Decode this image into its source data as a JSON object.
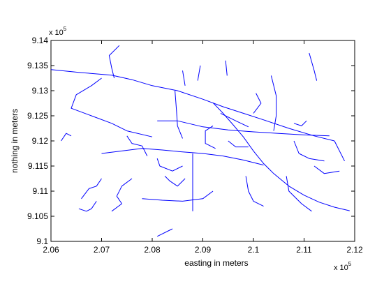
{
  "chart_data": {
    "type": "line",
    "xlabel": "easting in meters",
    "ylabel": "nothing in meters",
    "x_multiplier_label": {
      "base": "x 10",
      "exp": "5"
    },
    "y_multiplier_label": {
      "base": "x 10",
      "exp": "5"
    },
    "xlim": [
      2.06,
      2.12
    ],
    "ylim": [
      9.1,
      9.14
    ],
    "xticks": [
      2.06,
      2.07,
      2.08,
      2.09,
      2.1,
      2.11,
      2.12
    ],
    "yticks": [
      9.1,
      9.105,
      9.11,
      9.115,
      9.12,
      9.125,
      9.13,
      9.135,
      9.14
    ],
    "xtick_labels": [
      "2.06",
      "2.07",
      "2.08",
      "2.09",
      "2.1",
      "2.11",
      "2.12"
    ],
    "ytick_labels": [
      "9.1",
      "9.105",
      "9.11",
      "9.115",
      "9.12",
      "9.125",
      "9.13",
      "9.135",
      "9.14"
    ],
    "grid": false,
    "line_color": "#0000ff",
    "axes_color": "#000000",
    "series": [
      {
        "values": [
          [
            2.06,
            9.1342
          ],
          [
            2.066,
            9.1336
          ],
          [
            2.072,
            9.1331
          ],
          [
            2.076,
            9.1322
          ],
          [
            2.08,
            9.131
          ],
          [
            2.085,
            9.13
          ],
          [
            2.09,
            9.1283
          ],
          [
            2.094,
            9.1268
          ],
          [
            2.098,
            9.1255
          ],
          [
            2.102,
            9.1242
          ],
          [
            2.107,
            9.1225
          ],
          [
            2.112,
            9.121
          ],
          [
            2.116,
            9.12
          ]
        ]
      },
      {
        "values": [
          [
            2.092,
            9.1276
          ],
          [
            2.094,
            9.1255
          ],
          [
            2.096,
            9.1232
          ],
          [
            2.098,
            9.1208
          ],
          [
            2.1,
            9.118
          ],
          [
            2.102,
            9.1155
          ],
          [
            2.104,
            9.1135
          ],
          [
            2.107,
            9.111
          ],
          [
            2.11,
            9.1092
          ],
          [
            2.113,
            9.1078
          ],
          [
            2.116,
            9.1068
          ],
          [
            2.119,
            9.1061
          ]
        ]
      },
      {
        "values": [
          [
            2.07,
            9.1325
          ],
          [
            2.068,
            9.131
          ],
          [
            2.065,
            9.1292
          ],
          [
            2.064,
            9.1265
          ],
          [
            2.068,
            9.125
          ],
          [
            2.072,
            9.1235
          ],
          [
            2.075,
            9.122
          ],
          [
            2.08,
            9.1208
          ]
        ]
      },
      {
        "values": [
          [
            2.0725,
            9.1325
          ],
          [
            2.072,
            9.1345
          ],
          [
            2.0715,
            9.137
          ],
          [
            2.0735,
            9.139
          ]
        ]
      },
      {
        "values": [
          [
            2.081,
            9.124
          ],
          [
            2.085,
            9.124
          ],
          [
            2.09,
            9.1228
          ],
          [
            2.095,
            9.1222
          ],
          [
            2.1,
            9.1218
          ],
          [
            2.105,
            9.1215
          ],
          [
            2.11,
            9.1212
          ],
          [
            2.115,
            9.121
          ]
        ]
      },
      {
        "values": [
          [
            2.0845,
            9.13
          ],
          [
            2.0848,
            9.126
          ],
          [
            2.085,
            9.123
          ],
          [
            2.086,
            9.1205
          ]
        ]
      },
      {
        "values": [
          [
            2.07,
            9.1175
          ],
          [
            2.074,
            9.118
          ],
          [
            2.078,
            9.1185
          ],
          [
            2.082,
            9.1182
          ],
          [
            2.086,
            9.1178
          ],
          [
            2.09,
            9.1175
          ],
          [
            2.094,
            9.117
          ],
          [
            2.098,
            9.1162
          ],
          [
            2.102,
            9.1152
          ]
        ]
      },
      {
        "values": [
          [
            2.076,
            9.1125
          ],
          [
            2.074,
            9.111
          ],
          [
            2.073,
            9.109
          ],
          [
            2.074,
            9.1075
          ],
          [
            2.072,
            9.106
          ]
        ]
      },
      {
        "values": [
          [
            2.078,
            9.1085
          ],
          [
            2.082,
            9.1082
          ],
          [
            2.086,
            9.108
          ],
          [
            2.09,
            9.1085
          ],
          [
            2.092,
            9.11
          ]
        ]
      },
      {
        "values": [
          [
            2.088,
            9.1175
          ],
          [
            2.088,
            9.114
          ],
          [
            2.088,
            9.11
          ],
          [
            2.088,
            9.106
          ]
        ]
      },
      {
        "values": [
          [
            2.086,
            9.134
          ],
          [
            2.0865,
            9.131
          ]
        ]
      },
      {
        "values": [
          [
            2.0895,
            9.135
          ],
          [
            2.089,
            9.132
          ]
        ]
      },
      {
        "values": [
          [
            2.0945,
            9.136
          ],
          [
            2.0948,
            9.133
          ]
        ]
      },
      {
        "values": [
          [
            2.1035,
            9.133
          ],
          [
            2.1045,
            9.129
          ],
          [
            2.1045,
            9.125
          ],
          [
            2.104,
            9.122
          ]
        ]
      },
      {
        "values": [
          [
            2.111,
            9.1375
          ],
          [
            2.112,
            9.134
          ],
          [
            2.1125,
            9.132
          ]
        ]
      },
      {
        "values": [
          [
            2.116,
            9.12
          ],
          [
            2.118,
            9.116
          ]
        ]
      },
      {
        "values": [
          [
            2.092,
            9.123
          ],
          [
            2.0905,
            9.122
          ],
          [
            2.0905,
            9.1195
          ],
          [
            2.0925,
            9.1185
          ]
        ]
      },
      {
        "values": [
          [
            2.0935,
            9.1255
          ],
          [
            2.0965,
            9.124
          ],
          [
            2.099,
            9.1228
          ]
        ]
      },
      {
        "values": [
          [
            2.0985,
            9.113
          ],
          [
            2.099,
            9.11
          ],
          [
            2.1,
            9.108
          ],
          [
            2.102,
            9.107
          ]
        ]
      },
      {
        "values": [
          [
            2.1065,
            9.113
          ],
          [
            2.107,
            9.11
          ],
          [
            2.1095,
            9.1075
          ],
          [
            2.1115,
            9.106
          ]
        ]
      },
      {
        "values": [
          [
            2.075,
            9.121
          ],
          [
            2.076,
            9.1195
          ],
          [
            2.078,
            9.119
          ],
          [
            2.079,
            9.117
          ]
        ]
      },
      {
        "values": [
          [
            2.081,
            9.1165
          ],
          [
            2.0815,
            9.115
          ],
          [
            2.084,
            9.114
          ],
          [
            2.086,
            9.115
          ]
        ]
      },
      {
        "values": [
          [
            2.07,
            9.1125
          ],
          [
            2.069,
            9.111
          ],
          [
            2.0675,
            9.1105
          ],
          [
            2.066,
            9.1085
          ]
        ]
      },
      {
        "values": [
          [
            2.069,
            9.108
          ],
          [
            2.068,
            9.1065
          ],
          [
            2.067,
            9.106
          ],
          [
            2.0655,
            9.1065
          ]
        ]
      },
      {
        "values": [
          [
            2.062,
            9.12
          ],
          [
            2.063,
            9.1215
          ],
          [
            2.064,
            9.121
          ]
        ]
      },
      {
        "values": [
          [
            2.0825,
            9.113
          ],
          [
            2.0835,
            9.112
          ],
          [
            2.085,
            9.111
          ],
          [
            2.0865,
            9.1125
          ]
        ]
      },
      {
        "values": [
          [
            2.108,
            9.12
          ],
          [
            2.109,
            9.1175
          ],
          [
            2.111,
            9.1165
          ],
          [
            2.114,
            9.116
          ]
        ]
      },
      {
        "values": [
          [
            2.112,
            9.115
          ],
          [
            2.114,
            9.1135
          ],
          [
            2.117,
            9.114
          ]
        ]
      },
      {
        "values": [
          [
            2.1005,
            9.1295
          ],
          [
            2.1015,
            9.1275
          ],
          [
            2.1,
            9.1255
          ]
        ]
      },
      {
        "values": [
          [
            2.095,
            9.12
          ],
          [
            2.0965,
            9.1188
          ],
          [
            2.099,
            9.1188
          ]
        ]
      },
      {
        "values": [
          [
            2.081,
            9.101
          ],
          [
            2.084,
            9.1025
          ]
        ]
      },
      {
        "values": [
          [
            2.108,
            9.1235
          ],
          [
            2.1095,
            9.123
          ],
          [
            2.1105,
            9.124
          ]
        ]
      }
    ]
  }
}
